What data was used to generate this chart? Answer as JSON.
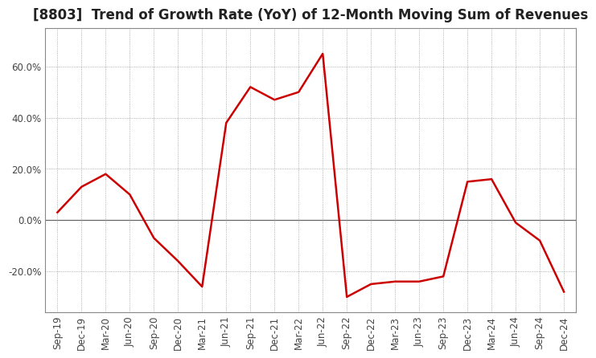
{
  "title": "[8803]  Trend of Growth Rate (YoY) of 12-Month Moving Sum of Revenues",
  "line_color": "#CC0000",
  "background_color": "#ffffff",
  "grid_color": "#999999",
  "x_labels": [
    "Sep-19",
    "Dec-19",
    "Mar-20",
    "Jun-20",
    "Sep-20",
    "Dec-20",
    "Mar-21",
    "Jun-21",
    "Sep-21",
    "Dec-21",
    "Mar-22",
    "Jun-22",
    "Sep-22",
    "Dec-22",
    "Mar-23",
    "Jun-23",
    "Sep-23",
    "Dec-23",
    "Mar-24",
    "Jun-24",
    "Sep-24",
    "Dec-24"
  ],
  "values": [
    3.0,
    13.0,
    18.0,
    10.0,
    -7.0,
    -16.0,
    -26.0,
    38.0,
    52.0,
    47.0,
    50.0,
    65.0,
    -30.0,
    -25.0,
    -24.0,
    -24.0,
    -22.0,
    15.0,
    16.0,
    -1.0,
    -8.0,
    -28.0
  ],
  "ylim": [
    -36,
    75
  ],
  "yticks": [
    -20.0,
    0.0,
    20.0,
    40.0,
    60.0
  ],
  "title_fontsize": 12,
  "axis_fontsize": 8.5
}
